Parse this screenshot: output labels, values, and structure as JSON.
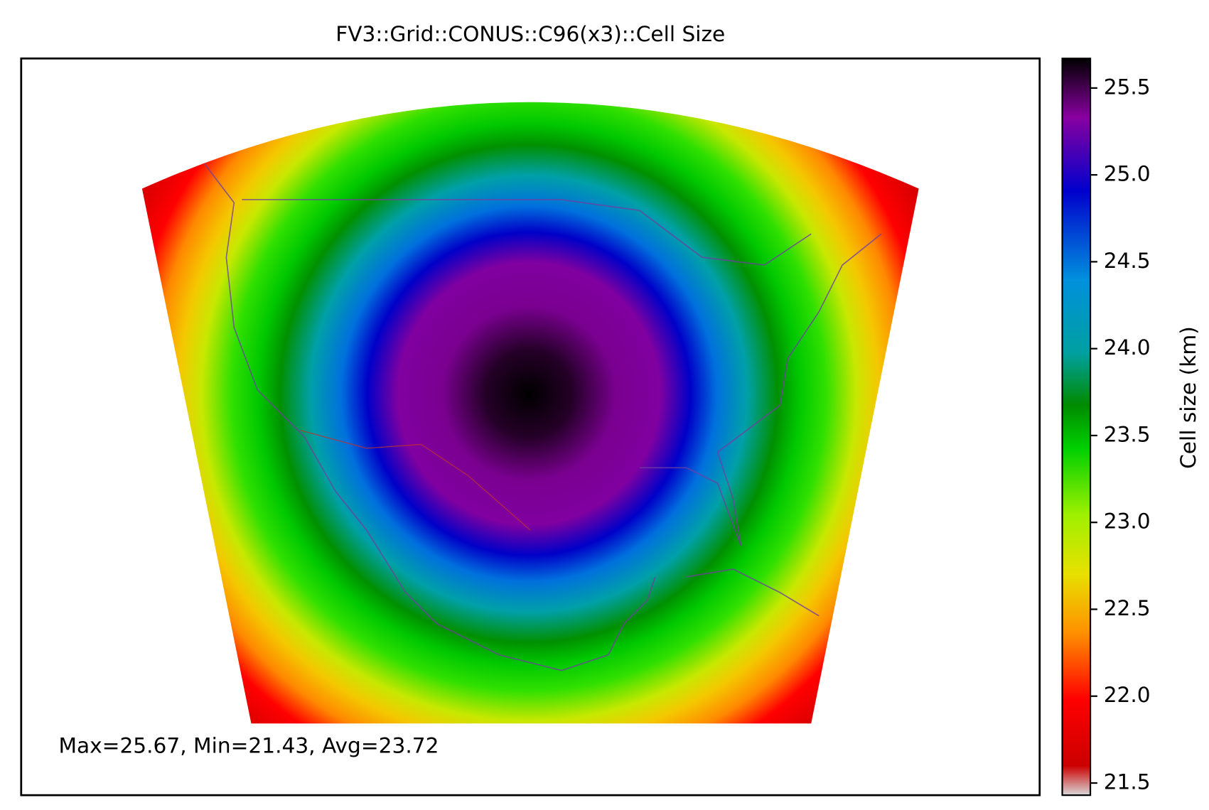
{
  "title": "FV3::Grid::CONUS::C96(x3)::Cell Size",
  "annotation": "Max=25.67, Min=21.43, Avg=23.72",
  "colorbar": {
    "label": "Cell size (km)",
    "lim": [
      21.43,
      25.67
    ],
    "ticks": [
      21.5,
      {
        "value": 22,
        "label": "22.0"
      },
      22.5,
      {
        "value": 23,
        "label": "23.0"
      },
      23.5,
      {
        "value": 24,
        "label": "24.0"
      },
      24.5,
      {
        "value": 25,
        "label": "25.0"
      },
      25.5
    ]
  }
}
